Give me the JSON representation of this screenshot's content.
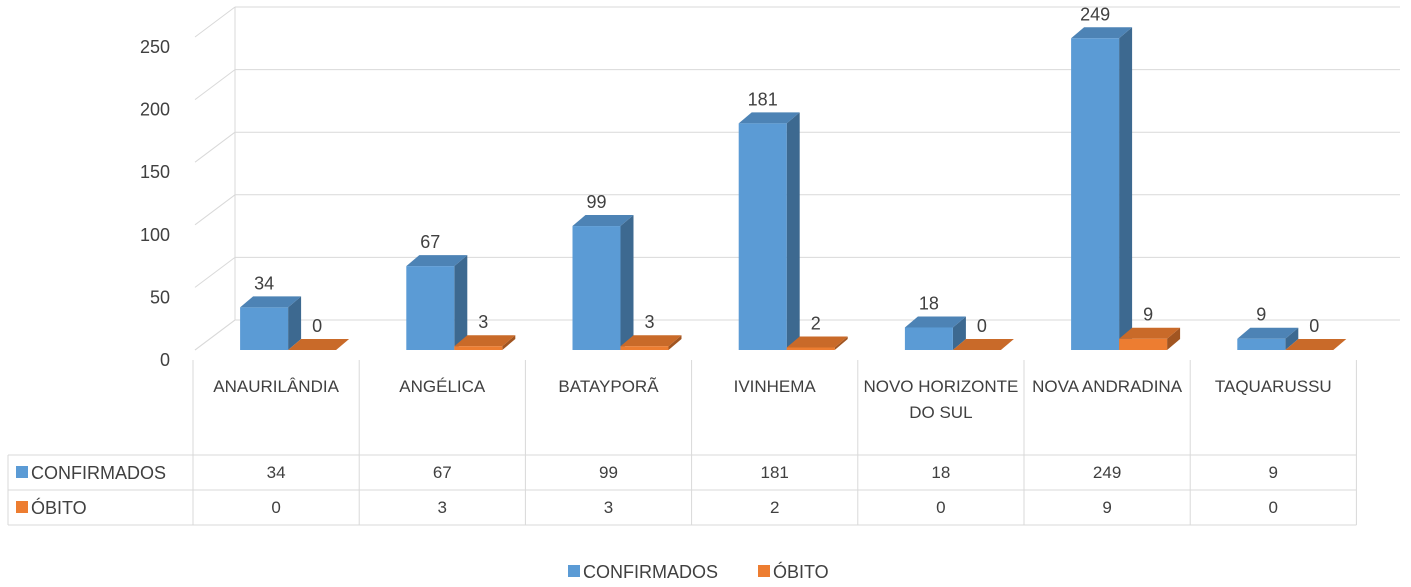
{
  "chart_data": {
    "type": "bar3d",
    "categories": [
      "ANAURILÂNDIA",
      "ANGÉLICA",
      "BATAYPORÃ",
      "IVINHEMA",
      "NOVO HORIZONTE DO SUL",
      "NOVA ANDRADINA",
      "TAQUARUSSU"
    ],
    "series": [
      {
        "name": "CONFIRMADOS",
        "color": "#5b9bd5",
        "values": [
          34,
          67,
          99,
          181,
          18,
          249,
          9
        ]
      },
      {
        "name": "ÓBITO",
        "color": "#ed7d31",
        "values": [
          0,
          3,
          3,
          2,
          0,
          9,
          0
        ]
      }
    ],
    "ylim": [
      0,
      250
    ],
    "yticks": [
      0,
      50,
      100,
      150,
      200,
      250
    ],
    "grid": true,
    "legend": "bottom",
    "data_table": true
  }
}
